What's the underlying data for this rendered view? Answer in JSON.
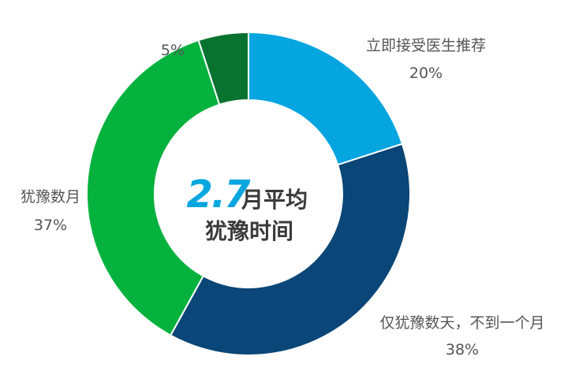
{
  "chart_data": {
    "type": "pie",
    "categories": [
      "立即接受医生推荐",
      "仅犹豫数天，不到一个月",
      "犹豫数月",
      ""
    ],
    "values": [
      20,
      38,
      37,
      5
    ],
    "value_labels": [
      "20%",
      "38%",
      "37%",
      "5%"
    ],
    "colors": [
      "#05a5e0",
      "#0a4677",
      "#06b23e",
      "#08722f"
    ],
    "donut": true
  },
  "center": {
    "number": "2.7",
    "suffix": "月平均",
    "line2": "犹豫时间"
  }
}
